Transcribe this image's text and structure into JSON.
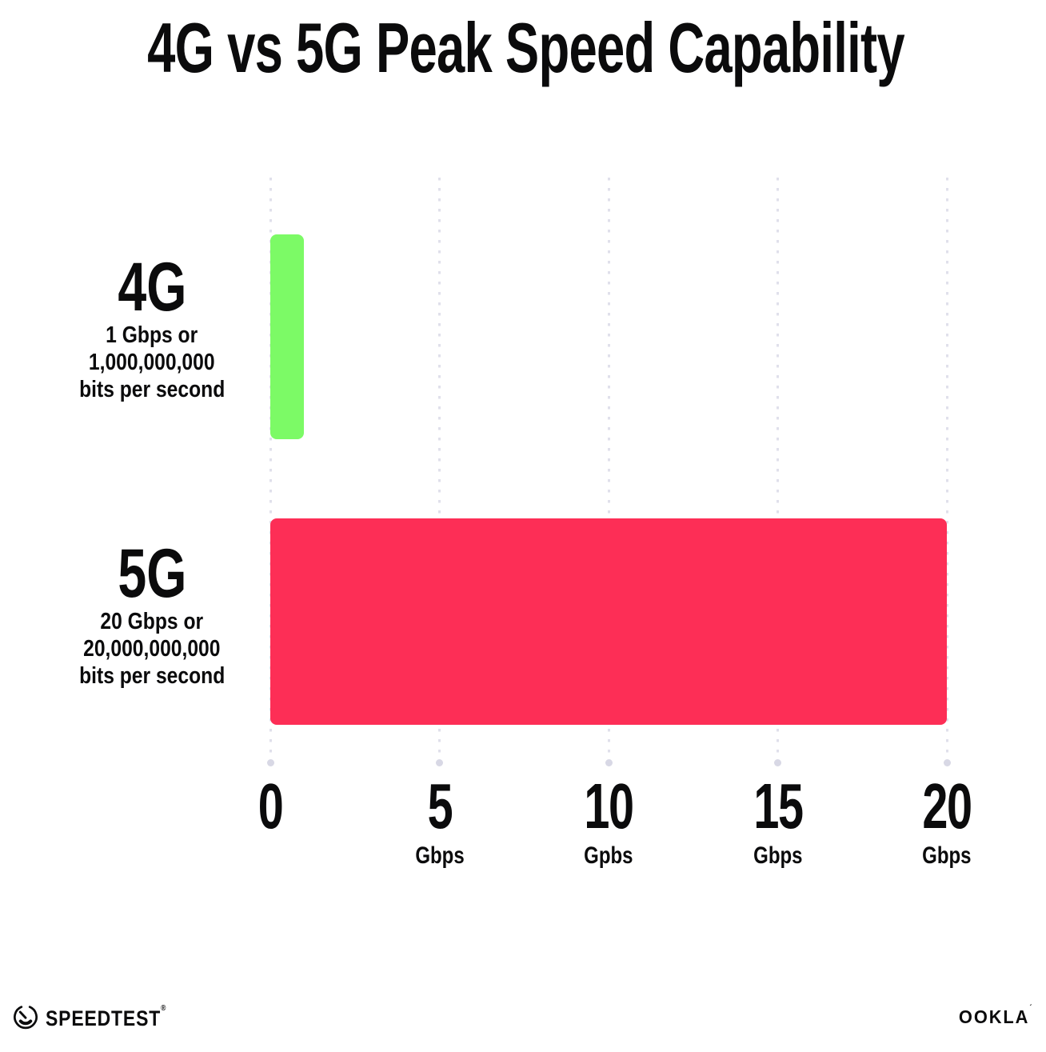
{
  "title": "4G vs 5G Peak Speed Capability",
  "colors": {
    "background": "#FFFFFF",
    "text": "#0B0B0C",
    "gridline": "#E0E0EB",
    "grid_dot": "#D8D8E5",
    "bar_4g": "#7CFA66",
    "bar_5g": "#FD2E56"
  },
  "chart_data": {
    "type": "bar",
    "orientation": "horizontal",
    "title": "4G vs 5G Peak Speed Capability",
    "categories": [
      "4G",
      "5G"
    ],
    "values": [
      1,
      20
    ],
    "value_unit": "Gbps",
    "xlim": [
      0,
      20
    ],
    "grid": "vertical-dotted",
    "legend": "none",
    "x_ticks": [
      {
        "pos": 0,
        "label": "0",
        "unit": ""
      },
      {
        "pos": 5,
        "label": "5",
        "unit": "Gbps"
      },
      {
        "pos": 10,
        "label": "10",
        "unit": "Gpbs"
      },
      {
        "pos": 15,
        "label": "15",
        "unit": "Gbps"
      },
      {
        "pos": 20,
        "label": "20",
        "unit": "Gbps"
      }
    ],
    "series_labels": [
      {
        "name": "4G",
        "sub_lines": [
          "1 Gbps or",
          "1,000,000,000",
          "bits per second"
        ],
        "color": "#7CFA66"
      },
      {
        "name": "5G",
        "sub_lines": [
          "20 Gbps or",
          "20,000,000,000",
          "bits per second"
        ],
        "color": "#FD2E56"
      }
    ]
  },
  "footer": {
    "speedtest_label": "SPEEDTEST",
    "speedtest_mark": "®",
    "ookla_label": "OOKLA",
    "ookla_mark": "´"
  }
}
